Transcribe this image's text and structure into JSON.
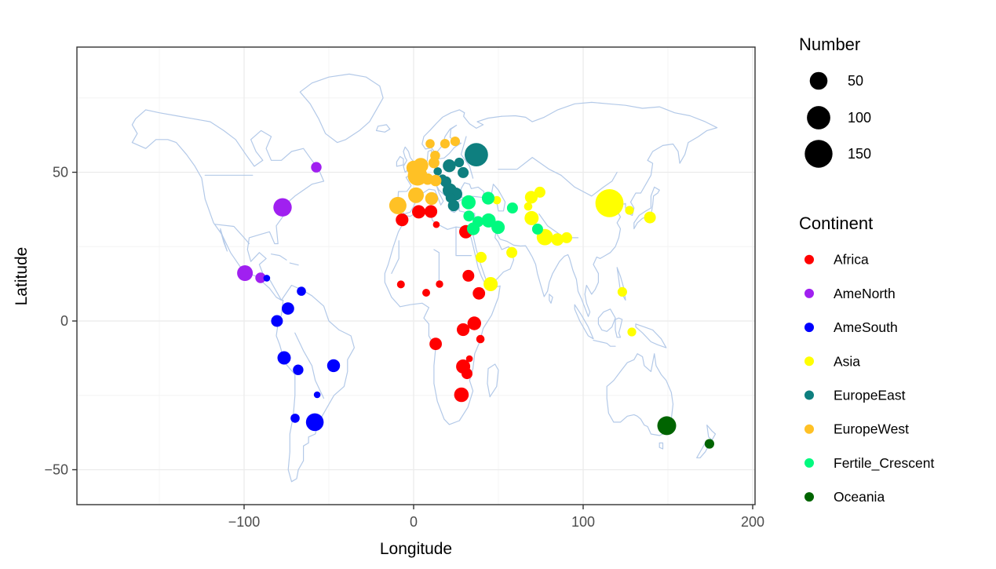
{
  "chart_data": {
    "type": "scatter",
    "title": "",
    "xlabel": "Longitude",
    "ylabel": "Latitude",
    "xlim": [
      -198.6,
      201.4
    ],
    "ylim": [
      -61.7,
      92.1
    ],
    "grid": "on",
    "legend_position": "right",
    "x_ticks": [
      {
        "value": -100,
        "label": "−100"
      },
      {
        "value": 0,
        "label": "0"
      },
      {
        "value": 100,
        "label": "100"
      },
      {
        "value": 200,
        "label": "200"
      }
    ],
    "y_ticks": [
      {
        "value": 50,
        "label": "50"
      },
      {
        "value": 0,
        "label": "0"
      },
      {
        "value": -50,
        "label": "−50"
      }
    ],
    "size_legend": {
      "title": "Number",
      "entries": [
        50,
        100,
        150
      ]
    },
    "color_legend": {
      "title": "Continent"
    },
    "map_outline_color": "#b3c9e8",
    "series": [
      {
        "name": "Africa",
        "color": "#FF0000",
        "points": [
          [
            -6.8,
            34.0,
            20
          ],
          [
            3.0,
            36.7,
            23
          ],
          [
            10.2,
            36.8,
            20
          ],
          [
            13.4,
            32.4,
            2
          ],
          [
            30.8,
            30.0,
            23
          ],
          [
            -7.5,
            12.3,
            4
          ],
          [
            7.4,
            9.5,
            4
          ],
          [
            15.3,
            12.4,
            3
          ],
          [
            32.3,
            15.2,
            16
          ],
          [
            38.5,
            9.3,
            19
          ],
          [
            35.8,
            -0.8,
            25
          ],
          [
            29.2,
            -2.9,
            20
          ],
          [
            39.4,
            -6.1,
            5
          ],
          [
            13.0,
            -7.7,
            19
          ],
          [
            32.9,
            -12.7,
            2
          ],
          [
            29.2,
            -15.3,
            27
          ],
          [
            31.5,
            -17.7,
            13
          ],
          [
            28.2,
            -24.8,
            30
          ]
        ]
      },
      {
        "name": "AmeNorth",
        "color": "#A020F0",
        "points": [
          [
            -57.4,
            51.7,
            11
          ],
          [
            -77.3,
            38.2,
            55
          ],
          [
            -99.5,
            16.1,
            36
          ],
          [
            -90.3,
            14.5,
            11
          ]
        ]
      },
      {
        "name": "AmeSouth",
        "color": "#0000FF",
        "points": [
          [
            -86.6,
            14.4,
            2
          ],
          [
            -66.2,
            10.0,
            7
          ],
          [
            -74.1,
            4.2,
            19
          ],
          [
            -80.6,
            0.0,
            16
          ],
          [
            -76.4,
            -12.4,
            23
          ],
          [
            -68.1,
            -16.4,
            11
          ],
          [
            -47.2,
            -15.0,
            21
          ],
          [
            -56.9,
            -24.8,
            2
          ],
          [
            -69.9,
            -32.7,
            7
          ],
          [
            -58.3,
            -34.0,
            50
          ]
        ]
      },
      {
        "name": "Asia",
        "color": "#FFFF00",
        "points": [
          [
            39.8,
            21.4,
            13
          ],
          [
            45.4,
            12.4,
            27
          ],
          [
            57.9,
            23.0,
            13
          ],
          [
            49.1,
            40.6,
            5
          ],
          [
            67.6,
            38.5,
            5
          ],
          [
            69.4,
            41.6,
            20
          ],
          [
            74.5,
            43.3,
            13
          ],
          [
            69.6,
            34.6,
            27
          ],
          [
            77.4,
            28.2,
            40
          ],
          [
            84.8,
            27.4,
            19
          ],
          [
            90.3,
            28.0,
            13
          ],
          [
            115.5,
            39.6,
            155
          ],
          [
            127.3,
            37.2,
            6
          ],
          [
            139.4,
            34.8,
            16
          ],
          [
            123.1,
            9.8,
            8
          ],
          [
            128.7,
            -3.7,
            6
          ]
        ]
      },
      {
        "name": "EuropeEast",
        "color": "#0E7F7F",
        "points": [
          [
            37.0,
            55.9,
            100
          ],
          [
            26.9,
            53.3,
            8
          ],
          [
            21.0,
            52.2,
            21
          ],
          [
            29.2,
            49.9,
            13
          ],
          [
            14.2,
            50.3,
            5
          ],
          [
            17.1,
            47.9,
            5
          ],
          [
            19.0,
            46.8,
            13
          ],
          [
            21.3,
            43.9,
            27
          ],
          [
            24.9,
            42.7,
            21
          ],
          [
            21.7,
            41.4,
            8
          ],
          [
            23.6,
            38.8,
            15
          ]
        ]
      },
      {
        "name": "EuropeWest",
        "color": "#FFC125",
        "points": [
          [
            9.7,
            59.6,
            7
          ],
          [
            18.5,
            59.6,
            8
          ],
          [
            24.5,
            60.4,
            8
          ],
          [
            12.7,
            55.6,
            9
          ],
          [
            12.0,
            53.2,
            13
          ],
          [
            4.2,
            52.3,
            32
          ],
          [
            -0.1,
            51.5,
            27
          ],
          [
            2.3,
            48.8,
            65
          ],
          [
            8.3,
            47.7,
            15
          ],
          [
            13.0,
            47.2,
            15
          ],
          [
            1.4,
            42.3,
            36
          ],
          [
            10.6,
            41.2,
            21
          ],
          [
            -9.3,
            38.8,
            47
          ]
        ]
      },
      {
        "name": "Fertile_Crescent",
        "color": "#00FA7F",
        "points": [
          [
            32.4,
            39.9,
            27
          ],
          [
            44.0,
            41.3,
            20
          ],
          [
            32.6,
            35.3,
            13
          ],
          [
            35.2,
            31.0,
            20
          ],
          [
            38.0,
            33.4,
            13
          ],
          [
            44.2,
            33.8,
            27
          ],
          [
            49.8,
            31.5,
            23
          ],
          [
            58.3,
            38.0,
            13
          ],
          [
            73.1,
            30.9,
            13
          ]
        ]
      },
      {
        "name": "Oceania",
        "color": "#006400",
        "points": [
          [
            149.3,
            -35.2,
            58
          ],
          [
            174.5,
            -41.3,
            8
          ]
        ]
      }
    ]
  }
}
